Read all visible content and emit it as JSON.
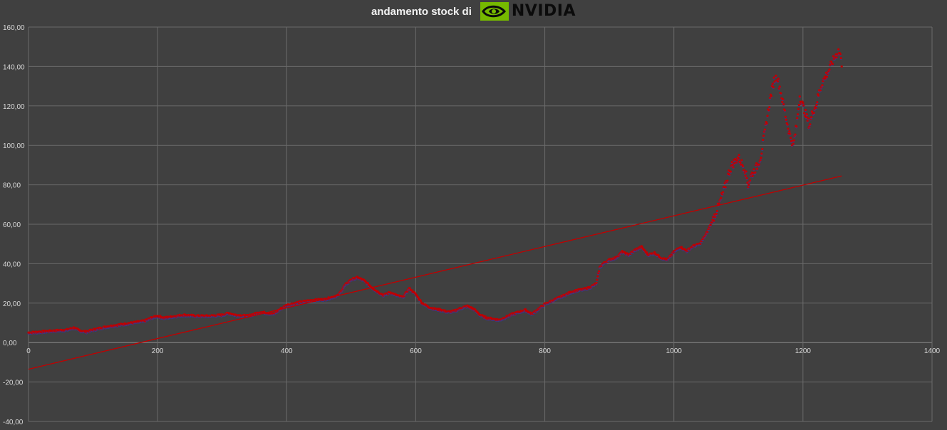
{
  "chart_data": {
    "type": "scatter",
    "title": "andamento stock di",
    "logo_text": "NVIDIA",
    "x_range": [
      0,
      1400
    ],
    "y_range": [
      -40,
      160
    ],
    "x_ticks": [
      "0",
      "200",
      "400",
      "600",
      "800",
      "1000",
      "1200",
      "1400"
    ],
    "y_ticks": [
      "160,00",
      "140,00",
      "120,00",
      "100,00",
      "80,00",
      "60,00",
      "40,00",
      "20,00",
      "0,00",
      "-20,00",
      "-40,00"
    ],
    "grid": true,
    "series": [
      {
        "color": "#c00000",
        "points": [
          [
            0,
            5
          ],
          [
            20,
            5.5
          ],
          [
            40,
            6
          ],
          [
            60,
            6.5
          ],
          [
            70,
            7.5
          ],
          [
            80,
            6
          ],
          [
            90,
            5.5
          ],
          [
            100,
            6.5
          ],
          [
            120,
            8
          ],
          [
            140,
            9
          ],
          [
            160,
            10
          ],
          [
            180,
            11
          ],
          [
            190,
            12.5
          ],
          [
            200,
            13.5
          ],
          [
            210,
            12.5
          ],
          [
            220,
            13
          ],
          [
            240,
            14
          ],
          [
            260,
            13.5
          ],
          [
            280,
            13.5
          ],
          [
            300,
            14
          ],
          [
            310,
            15
          ],
          [
            320,
            14
          ],
          [
            340,
            13.5
          ],
          [
            360,
            15.5
          ],
          [
            380,
            14.5
          ],
          [
            390,
            17
          ],
          [
            400,
            19
          ],
          [
            420,
            20.5
          ],
          [
            440,
            21.5
          ],
          [
            460,
            22
          ],
          [
            480,
            24
          ],
          [
            490,
            29
          ],
          [
            500,
            32
          ],
          [
            510,
            33
          ],
          [
            520,
            31.5
          ],
          [
            530,
            28.5
          ],
          [
            540,
            26
          ],
          [
            550,
            24
          ],
          [
            560,
            25.5
          ],
          [
            570,
            24
          ],
          [
            580,
            23
          ],
          [
            590,
            27.5
          ],
          [
            600,
            24.5
          ],
          [
            610,
            20
          ],
          [
            620,
            18
          ],
          [
            630,
            17
          ],
          [
            640,
            16.5
          ],
          [
            650,
            15.5
          ],
          [
            660,
            16
          ],
          [
            670,
            17.5
          ],
          [
            680,
            18.5
          ],
          [
            690,
            17
          ],
          [
            700,
            14
          ],
          [
            710,
            12.5
          ],
          [
            720,
            12
          ],
          [
            730,
            11.5
          ],
          [
            740,
            13
          ],
          [
            750,
            14.5
          ],
          [
            760,
            15.5
          ],
          [
            770,
            16.5
          ],
          [
            780,
            14.5
          ],
          [
            790,
            17
          ],
          [
            800,
            19.5
          ],
          [
            810,
            21
          ],
          [
            820,
            22.5
          ],
          [
            830,
            24
          ],
          [
            840,
            25.5
          ],
          [
            850,
            26.5
          ],
          [
            860,
            27
          ],
          [
            870,
            28
          ],
          [
            880,
            30
          ],
          [
            885,
            38
          ],
          [
            890,
            40
          ],
          [
            900,
            42
          ],
          [
            910,
            43
          ],
          [
            920,
            46
          ],
          [
            930,
            44.5
          ],
          [
            940,
            47
          ],
          [
            950,
            48.5
          ],
          [
            960,
            44.5
          ],
          [
            970,
            45.5
          ],
          [
            980,
            43
          ],
          [
            990,
            42
          ],
          [
            1000,
            46
          ],
          [
            1010,
            48.5
          ],
          [
            1020,
            46.5
          ],
          [
            1030,
            49
          ],
          [
            1040,
            50
          ],
          [
            1050,
            55
          ],
          [
            1060,
            62
          ],
          [
            1070,
            70
          ],
          [
            1080,
            80
          ],
          [
            1085,
            86
          ],
          [
            1090,
            90
          ],
          [
            1100,
            94
          ],
          [
            1110,
            88
          ],
          [
            1115,
            80
          ],
          [
            1120,
            85
          ],
          [
            1130,
            90
          ],
          [
            1135,
            95
          ],
          [
            1140,
            105
          ],
          [
            1145,
            115
          ],
          [
            1150,
            125
          ],
          [
            1155,
            133
          ],
          [
            1160,
            135
          ],
          [
            1165,
            128
          ],
          [
            1170,
            120
          ],
          [
            1175,
            112
          ],
          [
            1180,
            105
          ],
          [
            1185,
            100
          ],
          [
            1190,
            110
          ],
          [
            1195,
            125
          ],
          [
            1200,
            120
          ],
          [
            1205,
            115
          ],
          [
            1210,
            110
          ],
          [
            1215,
            117
          ],
          [
            1220,
            120
          ],
          [
            1225,
            127
          ],
          [
            1230,
            132
          ],
          [
            1235,
            135
          ],
          [
            1240,
            138
          ],
          [
            1245,
            142
          ],
          [
            1250,
            145
          ],
          [
            1255,
            148
          ],
          [
            1258,
            146
          ],
          [
            1260,
            140
          ]
        ]
      }
    ],
    "trendline": {
      "color": "#c00000",
      "x": [
        0,
        1260
      ],
      "y": [
        -13.5,
        84.5
      ]
    }
  }
}
